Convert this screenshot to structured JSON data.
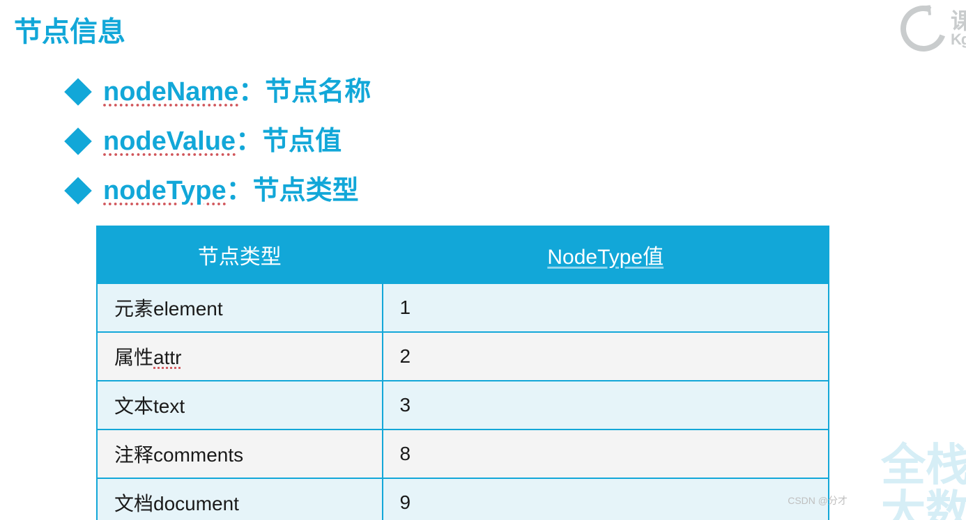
{
  "title": "节点信息",
  "bullets": [
    {
      "term": "nodeName",
      "desc": "节点名称"
    },
    {
      "term": "nodeValue",
      "desc": "节点值"
    },
    {
      "term": "nodeType",
      "desc": "节点类型"
    }
  ],
  "table": {
    "columns": [
      "节点类型",
      "NodeType值"
    ],
    "rows": [
      [
        "元素element",
        "1"
      ],
      [
        "属性attr",
        "2"
      ],
      [
        "文本text",
        "3"
      ],
      [
        "注释comments",
        "8"
      ],
      [
        "文档document",
        "9"
      ]
    ],
    "header_bg": "#12a7d8",
    "header_fg": "#ffffff",
    "border_color": "#12a7d8",
    "row_odd_bg": "#e6f4f9",
    "row_even_bg": "#f4f4f4",
    "font_size_header": 30,
    "font_size_cell": 28
  },
  "colors": {
    "accent": "#12a7d8",
    "underline_dotted": "#d0555a",
    "logo_gray": "#c9cccd",
    "watermark": "#d6eef6",
    "background": "#ffffff"
  },
  "logo": {
    "cn": "课",
    "en": "Kg"
  },
  "watermark_lines": [
    "全栈",
    "大数"
  ],
  "footer": "CSDN @分才"
}
